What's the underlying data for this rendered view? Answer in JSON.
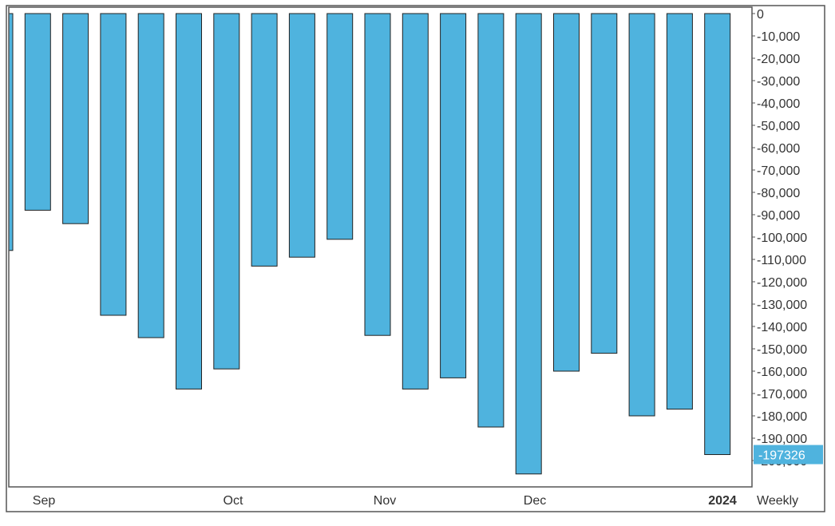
{
  "chart_data": {
    "type": "bar",
    "x_labels": [
      "Sep",
      "Oct",
      "Nov",
      "Dec",
      "2024"
    ],
    "x_labels_bold": [
      false,
      false,
      false,
      false,
      true
    ],
    "frequency_label": "Weekly",
    "values": [
      -106000,
      -88000,
      -94000,
      -135000,
      -145000,
      -168000,
      -159000,
      -113000,
      -109000,
      -101000,
      -144000,
      -168000,
      -163000,
      -185000,
      -206000,
      -160000,
      -152000,
      -180000,
      -177000,
      -197326
    ],
    "y_ticks": [
      0,
      -10000,
      -20000,
      -30000,
      -40000,
      -50000,
      -60000,
      -70000,
      -80000,
      -90000,
      -100000,
      -110000,
      -120000,
      -130000,
      -140000,
      -150000,
      -160000,
      -170000,
      -180000,
      -190000,
      -200000
    ],
    "y_tick_labels": [
      "0",
      "-10,000",
      "-20,000",
      "-30,000",
      "-40,000",
      "-50,000",
      "-60,000",
      "-70,000",
      "-80,000",
      "-90,000",
      "-100,000",
      "-110,000",
      "-120,000",
      "-130,000",
      "-140,000",
      "-150,000",
      "-160,000",
      "-170,000",
      "-180,000",
      "-190,000",
      "-200,000"
    ],
    "ylim": [
      -210000,
      0
    ],
    "last_value_label": "-197326",
    "grid": false,
    "legend": "none",
    "colors": {
      "bar": "#4fb3de",
      "bar_stroke": "#222222",
      "marker": "#4fb3de",
      "marker_text": "#ffffff",
      "frame": "#555555"
    }
  }
}
